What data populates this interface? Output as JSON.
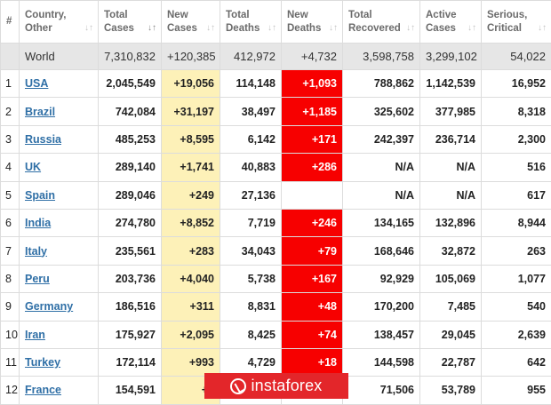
{
  "headers": {
    "idx": "#",
    "country": [
      "Country,",
      "Other"
    ],
    "total_cases": [
      "Total",
      "Cases"
    ],
    "new_cases": [
      "New",
      "Cases"
    ],
    "total_deaths": [
      "Total",
      "Deaths"
    ],
    "new_deaths": [
      "New",
      "Deaths"
    ],
    "total_recovered": [
      "Total",
      "Recovered"
    ],
    "active_cases": [
      "Active",
      "Cases"
    ],
    "serious": [
      "Serious,",
      "Critical"
    ]
  },
  "world": {
    "country": "World",
    "total_cases": "7,310,832",
    "new_cases": "+120,385",
    "total_deaths": "412,972",
    "new_deaths": "+4,732",
    "total_recovered": "3,598,758",
    "active_cases": "3,299,102",
    "serious": "54,022"
  },
  "rows": [
    {
      "idx": "1",
      "country": "USA",
      "total_cases": "2,045,549",
      "new_cases": "+19,056",
      "total_deaths": "114,148",
      "new_deaths": "+1,093",
      "total_recovered": "788,862",
      "active_cases": "1,142,539",
      "serious": "16,952"
    },
    {
      "idx": "2",
      "country": "Brazil",
      "total_cases": "742,084",
      "new_cases": "+31,197",
      "total_deaths": "38,497",
      "new_deaths": "+1,185",
      "total_recovered": "325,602",
      "active_cases": "377,985",
      "serious": "8,318"
    },
    {
      "idx": "3",
      "country": "Russia",
      "total_cases": "485,253",
      "new_cases": "+8,595",
      "total_deaths": "6,142",
      "new_deaths": "+171",
      "total_recovered": "242,397",
      "active_cases": "236,714",
      "serious": "2,300"
    },
    {
      "idx": "4",
      "country": "UK",
      "total_cases": "289,140",
      "new_cases": "+1,741",
      "total_deaths": "40,883",
      "new_deaths": "+286",
      "total_recovered": "N/A",
      "active_cases": "N/A",
      "serious": "516"
    },
    {
      "idx": "5",
      "country": "Spain",
      "total_cases": "289,046",
      "new_cases": "+249",
      "total_deaths": "27,136",
      "new_deaths": "",
      "total_recovered": "N/A",
      "active_cases": "N/A",
      "serious": "617"
    },
    {
      "idx": "6",
      "country": "India",
      "total_cases": "274,780",
      "new_cases": "+8,852",
      "total_deaths": "7,719",
      "new_deaths": "+246",
      "total_recovered": "134,165",
      "active_cases": "132,896",
      "serious": "8,944"
    },
    {
      "idx": "7",
      "country": "Italy",
      "total_cases": "235,561",
      "new_cases": "+283",
      "total_deaths": "34,043",
      "new_deaths": "+79",
      "total_recovered": "168,646",
      "active_cases": "32,872",
      "serious": "263"
    },
    {
      "idx": "8",
      "country": "Peru",
      "total_cases": "203,736",
      "new_cases": "+4,040",
      "total_deaths": "5,738",
      "new_deaths": "+167",
      "total_recovered": "92,929",
      "active_cases": "105,069",
      "serious": "1,077"
    },
    {
      "idx": "9",
      "country": "Germany",
      "total_cases": "186,516",
      "new_cases": "+311",
      "total_deaths": "8,831",
      "new_deaths": "+48",
      "total_recovered": "170,200",
      "active_cases": "7,485",
      "serious": "540"
    },
    {
      "idx": "10",
      "country": "Iran",
      "total_cases": "175,927",
      "new_cases": "+2,095",
      "total_deaths": "8,425",
      "new_deaths": "+74",
      "total_recovered": "138,457",
      "active_cases": "29,045",
      "serious": "2,639"
    },
    {
      "idx": "11",
      "country": "Turkey",
      "total_cases": "172,114",
      "new_cases": "+993",
      "total_deaths": "4,729",
      "new_deaths": "+18",
      "total_recovered": "144,598",
      "active_cases": "22,787",
      "serious": "642"
    },
    {
      "idx": "12",
      "country": "France",
      "total_cases": "154,591",
      "new_cases": "+4",
      "total_deaths": "",
      "new_deaths": "",
      "total_recovered": "71,506",
      "active_cases": "53,789",
      "serious": "955"
    }
  ],
  "banner": {
    "text": "instaforex",
    "icon": "instaforex-logo-icon"
  },
  "colors": {
    "new_cases_bg": "#fdf1b8",
    "new_deaths_bg": "#f70000",
    "link": "#2f6fa6",
    "world_bg": "#e6e6e6",
    "banner_bg": "#e3262a"
  }
}
